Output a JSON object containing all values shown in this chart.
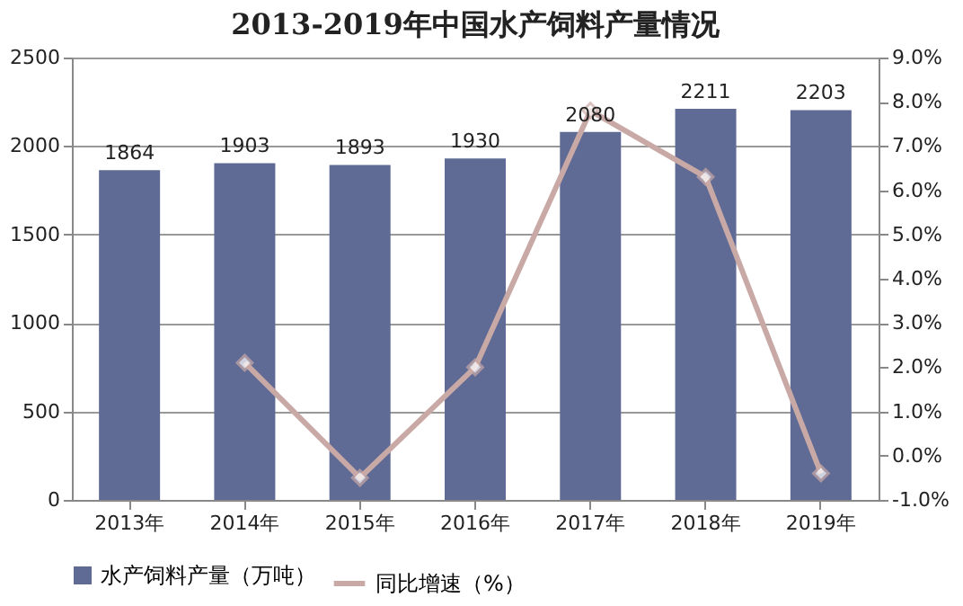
{
  "chart_data": {
    "type": "bar",
    "title": "2013-2019年中国水产饲料产量情况",
    "categories": [
      "2013年",
      "2014年",
      "2015年",
      "2016年",
      "2017年",
      "2018年",
      "2019年"
    ],
    "series": [
      {
        "name": "水产饲料产量（万吨）",
        "color": "#5f6b95",
        "values": [
          1864,
          1903,
          1893,
          1930,
          2080,
          2211,
          2203
        ],
        "value_labels": [
          "1864",
          "1903",
          "1893",
          "1930",
          "2080",
          "2211",
          "2203"
        ]
      },
      {
        "name": "同比增速（%）",
        "type": "line",
        "axis": "y2",
        "color": "#c9a9a6",
        "marker": "diamond",
        "values": [
          null,
          2.1,
          -0.5,
          2.0,
          7.8,
          6.3,
          -0.4
        ]
      }
    ],
    "ylim": [
      0,
      2500
    ],
    "yticks": [
      0,
      500,
      1000,
      1500,
      2000,
      2500
    ],
    "y2lim": [
      -1,
      9
    ],
    "y2ticks": [
      {
        "value": -1,
        "label": "-1.0%"
      },
      {
        "value": 0,
        "label": "0.0%"
      },
      {
        "value": 1,
        "label": "1.0%"
      },
      {
        "value": 2,
        "label": "2.0%"
      },
      {
        "value": 3,
        "label": "3.0%"
      },
      {
        "value": 4,
        "label": "4.0%"
      },
      {
        "value": 5,
        "label": "5.0%"
      },
      {
        "value": 6,
        "label": "6.0%"
      },
      {
        "value": 7,
        "label": "7.0%"
      },
      {
        "value": 8,
        "label": "8.0%"
      },
      {
        "value": 9,
        "label": "9.0%"
      }
    ],
    "grid": "y",
    "legend": "bottom"
  }
}
